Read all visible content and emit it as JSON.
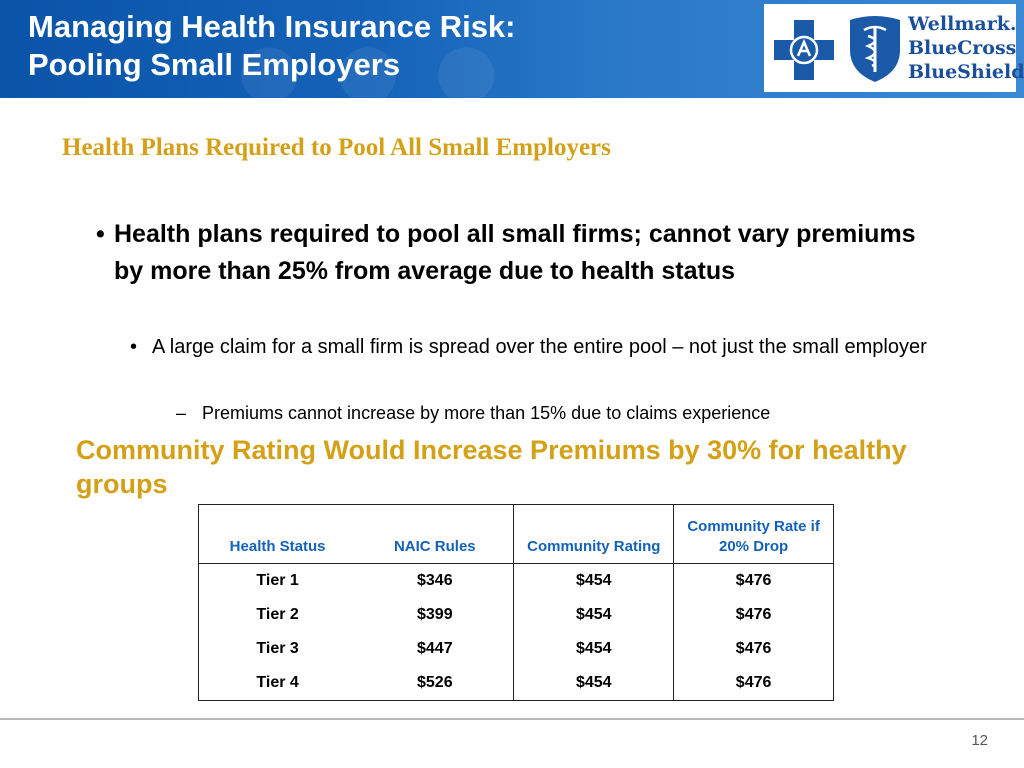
{
  "header": {
    "title_line1": "Managing Health Insurance Risk:",
    "title_line2": "Pooling Small Employers",
    "background_color": "#0a54a8",
    "logo": {
      "line1": "Wellmark.",
      "line2": "BlueCross",
      "line3": "BlueShield",
      "color": "#1a4f9c"
    }
  },
  "subtitle": "Health Plans Required to Pool All Small Employers",
  "accent_color": "#d4a017",
  "bullets": {
    "level1": "Health plans required to pool all small firms; cannot vary premiums by more than 25% from average due to health status",
    "level2": "A large claim for a small firm is spread over the entire pool – not just the small employer",
    "level3": "Premiums cannot increase by more than 15% due to claims experience"
  },
  "heading2": "Community Rating Would Increase Premiums by 30% for healthy groups",
  "table": {
    "headers": [
      "Health Status",
      "NAIC Rules",
      "Community Rating",
      "Community Rate if 20% Drop"
    ],
    "rows": [
      [
        "Tier 1",
        "$346",
        "$454",
        "$476"
      ],
      [
        "Tier 2",
        "$399",
        "$454",
        "$476"
      ],
      [
        "Tier 3",
        "$447",
        "$454",
        "$476"
      ],
      [
        "Tier 4",
        "$526",
        "$454",
        "$476"
      ]
    ]
  },
  "page_number": "12"
}
